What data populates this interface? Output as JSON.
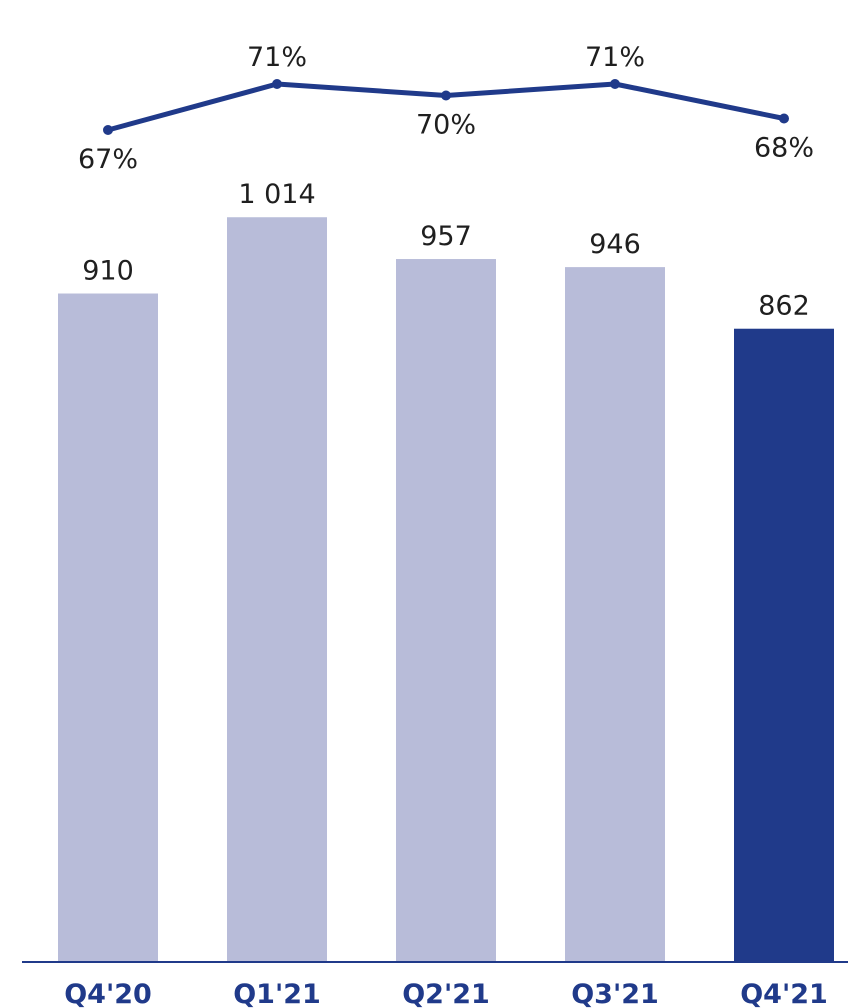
{
  "chart_data": {
    "type": "bar",
    "categories": [
      "Q4'20",
      "Q1'21",
      "Q2'21",
      "Q3'21",
      "Q4'21"
    ],
    "bar_values": [
      910,
      1014,
      957,
      946,
      862
    ],
    "bar_value_labels": [
      "910",
      "1 014",
      "957",
      "946",
      "862"
    ],
    "line_values": [
      67,
      71,
      70,
      71,
      68
    ],
    "line_value_labels": [
      "67%",
      "71%",
      "70%",
      "71%",
      "68%"
    ],
    "line_label_placement": [
      "below",
      "above",
      "below",
      "above",
      "below"
    ],
    "title": "",
    "xlabel": "",
    "ylabel": "",
    "ylim": [
      0,
      1050
    ],
    "line_ylim": [
      64,
      72
    ],
    "highlight_index": 4,
    "grid": false,
    "colors": {
      "bar": "#b8bcd9",
      "bar_highlight": "#203a8a",
      "line": "#203a8a",
      "axis": "#203a8a",
      "tick_text": "#203a8a",
      "value_text": "#1f1f1f"
    }
  }
}
